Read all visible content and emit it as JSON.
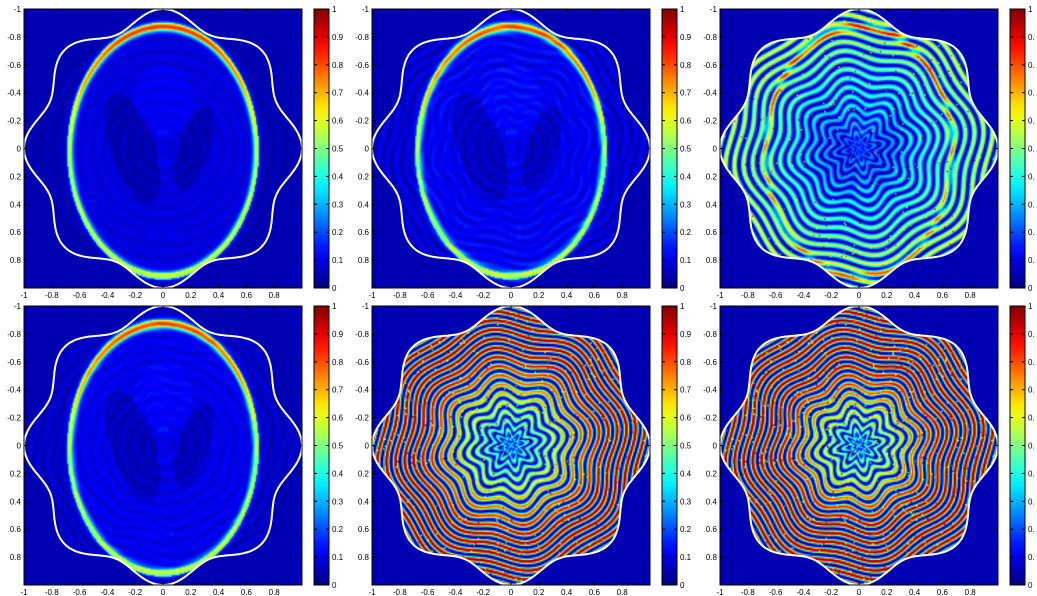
{
  "chart_data": [
    {
      "type": "heatmap",
      "panel": "top-left",
      "title": "",
      "xlabel": "",
      "ylabel": "",
      "xlim": [
        -1,
        1
      ],
      "ylim": [
        1,
        -1
      ],
      "xticks": [
        "-1",
        "-0.8",
        "-0.6",
        "-0.4",
        "-0.2",
        "0",
        "0.2",
        "0.4",
        "0.6",
        "0.8"
      ],
      "yticks": [
        "-1",
        "-0.8",
        "-0.6",
        "-0.4",
        "-0.2",
        "0",
        "0.2",
        "0.4",
        "0.6",
        "0.8"
      ],
      "colorbar": {
        "range": [
          0,
          1
        ],
        "ticks": [
          "0",
          "0.1",
          "0.2",
          "0.3",
          "0.4",
          "0.5",
          "0.6",
          "0.7",
          "0.8",
          "0.9",
          "1"
        ]
      },
      "image": "shepp-logan-phantom",
      "content": {
        "artifact": 0.0,
        "shell": 1.0,
        "ringing": 0.2,
        "noise": 0.0
      }
    },
    {
      "type": "heatmap",
      "panel": "top-middle",
      "title": "",
      "xlabel": "",
      "ylabel": "",
      "xlim": [
        -1,
        1
      ],
      "ylim": [
        1,
        -1
      ],
      "xticks": [
        "-1",
        "-0.8",
        "-0.6",
        "-0.4",
        "-0.2",
        "0",
        "0.2",
        "0.4",
        "0.6",
        "0.8"
      ],
      "yticks": [
        "-1",
        "-0.8",
        "-0.6",
        "-0.4",
        "-0.2",
        "0",
        "0.2",
        "0.4",
        "0.6",
        "0.8"
      ],
      "colorbar": {
        "range": [
          0,
          1
        ],
        "ticks": [
          "0",
          "0.1",
          "0.2",
          "0.3",
          "0.4",
          "0.5",
          "0.6",
          "0.7",
          "0.8",
          "0.9",
          "1"
        ]
      },
      "image": "shepp-logan-phantom",
      "content": {
        "artifact": 0.05,
        "shell": 1.0,
        "ringing": 0.3,
        "noise": 0.0
      }
    },
    {
      "type": "heatmap",
      "panel": "top-right",
      "title": "",
      "xlabel": "",
      "ylabel": "",
      "xlim": [
        -1,
        1
      ],
      "ylim": [
        1,
        -1
      ],
      "xticks": [
        "-1",
        "-0.8",
        "-0.6",
        "-0.4",
        "-0.2",
        "0",
        "0.2",
        "0.4",
        "0.6",
        "0.8"
      ],
      "yticks": [
        "-1",
        "-0.8",
        "-0.6",
        "-0.4",
        "-0.2",
        "0",
        "0.2",
        "0.4",
        "0.6",
        "0.8"
      ],
      "colorbar": {
        "range": [
          0,
          1
        ],
        "ticks": [
          "0",
          "0.",
          "0.",
          "0.",
          "0.",
          "0.",
          "0.",
          "0.",
          "0.",
          "0.",
          "1"
        ]
      },
      "image": "shepp-logan-phantom",
      "content": {
        "artifact": 0.45,
        "shell": 0.95,
        "ringing": 0.3,
        "noise": 0.15
      }
    },
    {
      "type": "heatmap",
      "panel": "bottom-left",
      "title": "",
      "xlabel": "",
      "ylabel": "",
      "xlim": [
        -1,
        1
      ],
      "ylim": [
        1,
        -1
      ],
      "xticks": [
        "-1",
        "-0.8",
        "-0.6",
        "-0.4",
        "-0.2",
        "0",
        "0.2",
        "0.4",
        "0.6",
        "0.8"
      ],
      "yticks": [
        "-1",
        "-0.8",
        "-0.6",
        "-0.4",
        "-0.2",
        "0",
        "0.2",
        "0.4",
        "0.6",
        "0.8"
      ],
      "colorbar": {
        "range": [
          0,
          1
        ],
        "ticks": [
          "0",
          "0.1",
          "0.2",
          "0.3",
          "0.4",
          "0.5",
          "0.6",
          "0.7",
          "0.8",
          "0.9",
          "1"
        ]
      },
      "image": "shepp-logan-phantom",
      "content": {
        "artifact": 0.03,
        "shell": 1.0,
        "ringing": 0.25,
        "noise": 0.0
      }
    },
    {
      "type": "heatmap",
      "panel": "bottom-middle",
      "title": "",
      "xlabel": "",
      "ylabel": "",
      "xlim": [
        -1,
        1
      ],
      "ylim": [
        1,
        -1
      ],
      "xticks": [
        "-1",
        "-0.8",
        "-0.6",
        "-0.4",
        "-0.2",
        "0",
        "0.2",
        "0.4",
        "0.6",
        "0.8"
      ],
      "yticks": [
        "-1",
        "-0.8",
        "-0.6",
        "-0.4",
        "-0.2",
        "0",
        "0.2",
        "0.4",
        "0.6",
        "0.8"
      ],
      "colorbar": {
        "range": [
          0,
          1
        ],
        "ticks": [
          "0",
          "0.1",
          "0.2",
          "0.3",
          "0.4",
          "0.5",
          "0.6",
          "0.7",
          "0.8",
          "0.9",
          "1"
        ]
      },
      "image": "shepp-logan-phantom",
      "content": {
        "artifact": 0.9,
        "shell": 0.5,
        "ringing": 0.4,
        "noise": 0.3
      }
    },
    {
      "type": "heatmap",
      "panel": "bottom-right",
      "title": "",
      "xlabel": "",
      "ylabel": "",
      "xlim": [
        -1,
        1
      ],
      "ylim": [
        1,
        -1
      ],
      "xticks": [
        "-1",
        "-0.8",
        "-0.6",
        "-0.4",
        "-0.2",
        "0",
        "0.2",
        "0.4",
        "0.6",
        "0.8"
      ],
      "yticks": [
        "-1",
        "-0.8",
        "-0.6",
        "-0.4",
        "-0.2",
        "0",
        "0.2",
        "0.4",
        "0.6",
        "0.8"
      ],
      "colorbar": {
        "range": [
          0,
          1
        ],
        "ticks": [
          "0",
          "0.",
          "0.",
          "0.",
          "0.",
          "0.",
          "0.",
          "0.",
          "0.",
          "0.",
          "1"
        ]
      },
      "image": "shepp-logan-phantom",
      "content": {
        "artifact": 1.0,
        "shell": 0.0,
        "ringing": 0.0,
        "noise": 0.4
      }
    }
  ],
  "colors": {
    "background": "#00008f",
    "boundary": "#ffffff",
    "colormap": "jet"
  }
}
